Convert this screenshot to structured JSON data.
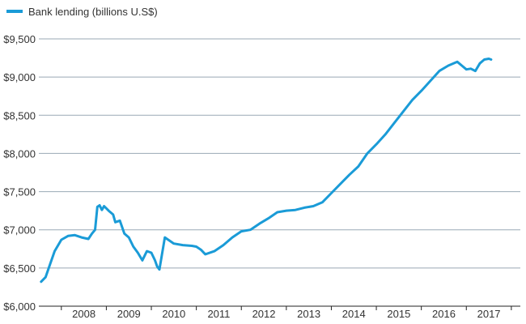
{
  "colors": {
    "series": "#1a9bd7",
    "grid": "#9aa9b5",
    "axis": "#222222",
    "text": "#333333",
    "background": "#ffffff"
  },
  "chart_data": {
    "type": "line",
    "title": "",
    "xlabel": "",
    "ylabel": "",
    "legend": "top-left",
    "grid": "horizontal",
    "x_unit": "year",
    "xlim": [
      2007.5,
      2018.2
    ],
    "ylim": [
      6000,
      9500
    ],
    "y_ticks": [
      6000,
      6500,
      7000,
      7500,
      8000,
      8500,
      9000,
      9500
    ],
    "y_tick_labels": [
      "$6,000",
      "$6,500",
      "$7,000",
      "$7,500",
      "$8,000",
      "$8,500",
      "$9,000",
      "$9,500"
    ],
    "x_tick_labels": [
      "2008",
      "2009",
      "2010",
      "2011",
      "2012",
      "2013",
      "2014",
      "2015",
      "2016",
      "2017"
    ],
    "series": [
      {
        "name": "Bank lending (billions U.S$)",
        "x": [
          2007.55,
          2007.65,
          2007.75,
          2007.85,
          2008.0,
          2008.15,
          2008.3,
          2008.45,
          2008.6,
          2008.68,
          2008.75,
          2008.8,
          2008.85,
          2008.9,
          2008.95,
          2009.05,
          2009.15,
          2009.2,
          2009.3,
          2009.4,
          2009.5,
          2009.6,
          2009.7,
          2009.8,
          2009.9,
          2010.0,
          2010.08,
          2010.13,
          2010.18,
          2010.3,
          2010.5,
          2010.7,
          2010.9,
          2011.0,
          2011.1,
          2011.2,
          2011.4,
          2011.6,
          2011.8,
          2012.0,
          2012.2,
          2012.4,
          2012.6,
          2012.8,
          2013.0,
          2013.2,
          2013.4,
          2013.6,
          2013.8,
          2014.0,
          2014.2,
          2014.4,
          2014.6,
          2014.8,
          2015.0,
          2015.2,
          2015.4,
          2015.6,
          2015.8,
          2016.0,
          2016.2,
          2016.4,
          2016.6,
          2016.8,
          2016.9,
          2017.0,
          2017.1,
          2017.2,
          2017.3,
          2017.4,
          2017.5,
          2017.55
        ],
        "y": [
          6320,
          6380,
          6550,
          6720,
          6870,
          6920,
          6930,
          6900,
          6880,
          6950,
          7000,
          7300,
          7320,
          7260,
          7310,
          7250,
          7200,
          7100,
          7120,
          6950,
          6900,
          6780,
          6700,
          6600,
          6720,
          6700,
          6600,
          6520,
          6480,
          6900,
          6820,
          6800,
          6790,
          6780,
          6740,
          6680,
          6720,
          6800,
          6900,
          6980,
          7000,
          7080,
          7150,
          7230,
          7250,
          7260,
          7290,
          7310,
          7360,
          7480,
          7600,
          7720,
          7830,
          8000,
          8120,
          8250,
          8400,
          8550,
          8700,
          8820,
          8950,
          9080,
          9150,
          9200,
          9150,
          9100,
          9110,
          9080,
          9180,
          9230,
          9240,
          9230
        ]
      }
    ]
  }
}
